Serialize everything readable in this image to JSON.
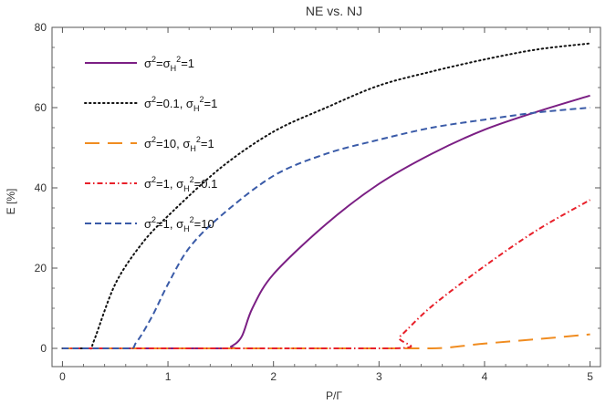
{
  "chart_data": {
    "type": "line",
    "title": "NE vs. NJ",
    "xlabel": "P/Γ",
    "ylabel": "E [%]",
    "xlim": [
      0,
      5
    ],
    "ylim": [
      0,
      80
    ],
    "x_ticks": [
      "0",
      "1",
      "2",
      "3",
      "4",
      "5"
    ],
    "y_ticks": [
      "0",
      "20",
      "40",
      "60",
      "80"
    ],
    "grid": false,
    "legend_position": "top-left",
    "series": [
      {
        "legend": {
          "sigma2": "1",
          "sigmaH2": "1",
          "format": "combined"
        },
        "color": "#7b1f84",
        "dash": "solid",
        "points": [
          [
            0,
            0
          ],
          [
            1.5,
            0
          ],
          [
            1.6,
            0.5
          ],
          [
            1.7,
            3
          ],
          [
            1.8,
            10
          ],
          [
            2.0,
            18.5
          ],
          [
            2.5,
            31
          ],
          [
            3.0,
            41
          ],
          [
            3.5,
            48.5
          ],
          [
            4.0,
            54.5
          ],
          [
            4.5,
            59
          ],
          [
            5.0,
            63
          ]
        ]
      },
      {
        "legend": {
          "sigma2": "0.1",
          "sigmaH2": "1",
          "format": "separate"
        },
        "color": "#111111",
        "dash": "dotted",
        "points": [
          [
            0,
            0
          ],
          [
            0.25,
            0
          ],
          [
            0.3,
            2
          ],
          [
            0.5,
            16
          ],
          [
            0.75,
            26
          ],
          [
            1.0,
            33
          ],
          [
            1.5,
            45
          ],
          [
            2.0,
            54
          ],
          [
            2.5,
            60
          ],
          [
            3.0,
            65.5
          ],
          [
            3.5,
            69
          ],
          [
            4.0,
            72
          ],
          [
            4.5,
            74.5
          ],
          [
            5.0,
            76
          ]
        ]
      },
      {
        "legend": {
          "sigma2": "10",
          "sigmaH2": "1",
          "format": "separate"
        },
        "color": "#f08c20",
        "dash": "longdash",
        "points": [
          [
            0,
            0
          ],
          [
            3.0,
            0
          ],
          [
            3.5,
            0
          ],
          [
            4.0,
            1.2
          ],
          [
            4.5,
            2.3
          ],
          [
            5.0,
            3.5
          ]
        ]
      },
      {
        "legend": {
          "sigma2": "1",
          "sigmaH2": "0.1",
          "format": "separate"
        },
        "color": "#e8202a",
        "dash": "dashdot",
        "points": [
          [
            0,
            0
          ],
          [
            3.05,
            0
          ],
          [
            3.2,
            3
          ],
          [
            3.5,
            10.5
          ],
          [
            4.0,
            20.5
          ],
          [
            4.5,
            29.5
          ],
          [
            5.0,
            37
          ]
        ]
      },
      {
        "legend": {
          "sigma2": "1",
          "sigmaH2": "10",
          "format": "separate"
        },
        "color": "#3a5ba8",
        "dash": "dashed",
        "points": [
          [
            0,
            0
          ],
          [
            0.6,
            0
          ],
          [
            0.7,
            1.5
          ],
          [
            0.85,
            8
          ],
          [
            1.0,
            16
          ],
          [
            1.2,
            25
          ],
          [
            1.5,
            33
          ],
          [
            2.0,
            43
          ],
          [
            2.5,
            48.5
          ],
          [
            3.0,
            52
          ],
          [
            3.5,
            55
          ],
          [
            4.0,
            57
          ],
          [
            4.5,
            58.8
          ],
          [
            5.0,
            60
          ]
        ]
      }
    ]
  }
}
